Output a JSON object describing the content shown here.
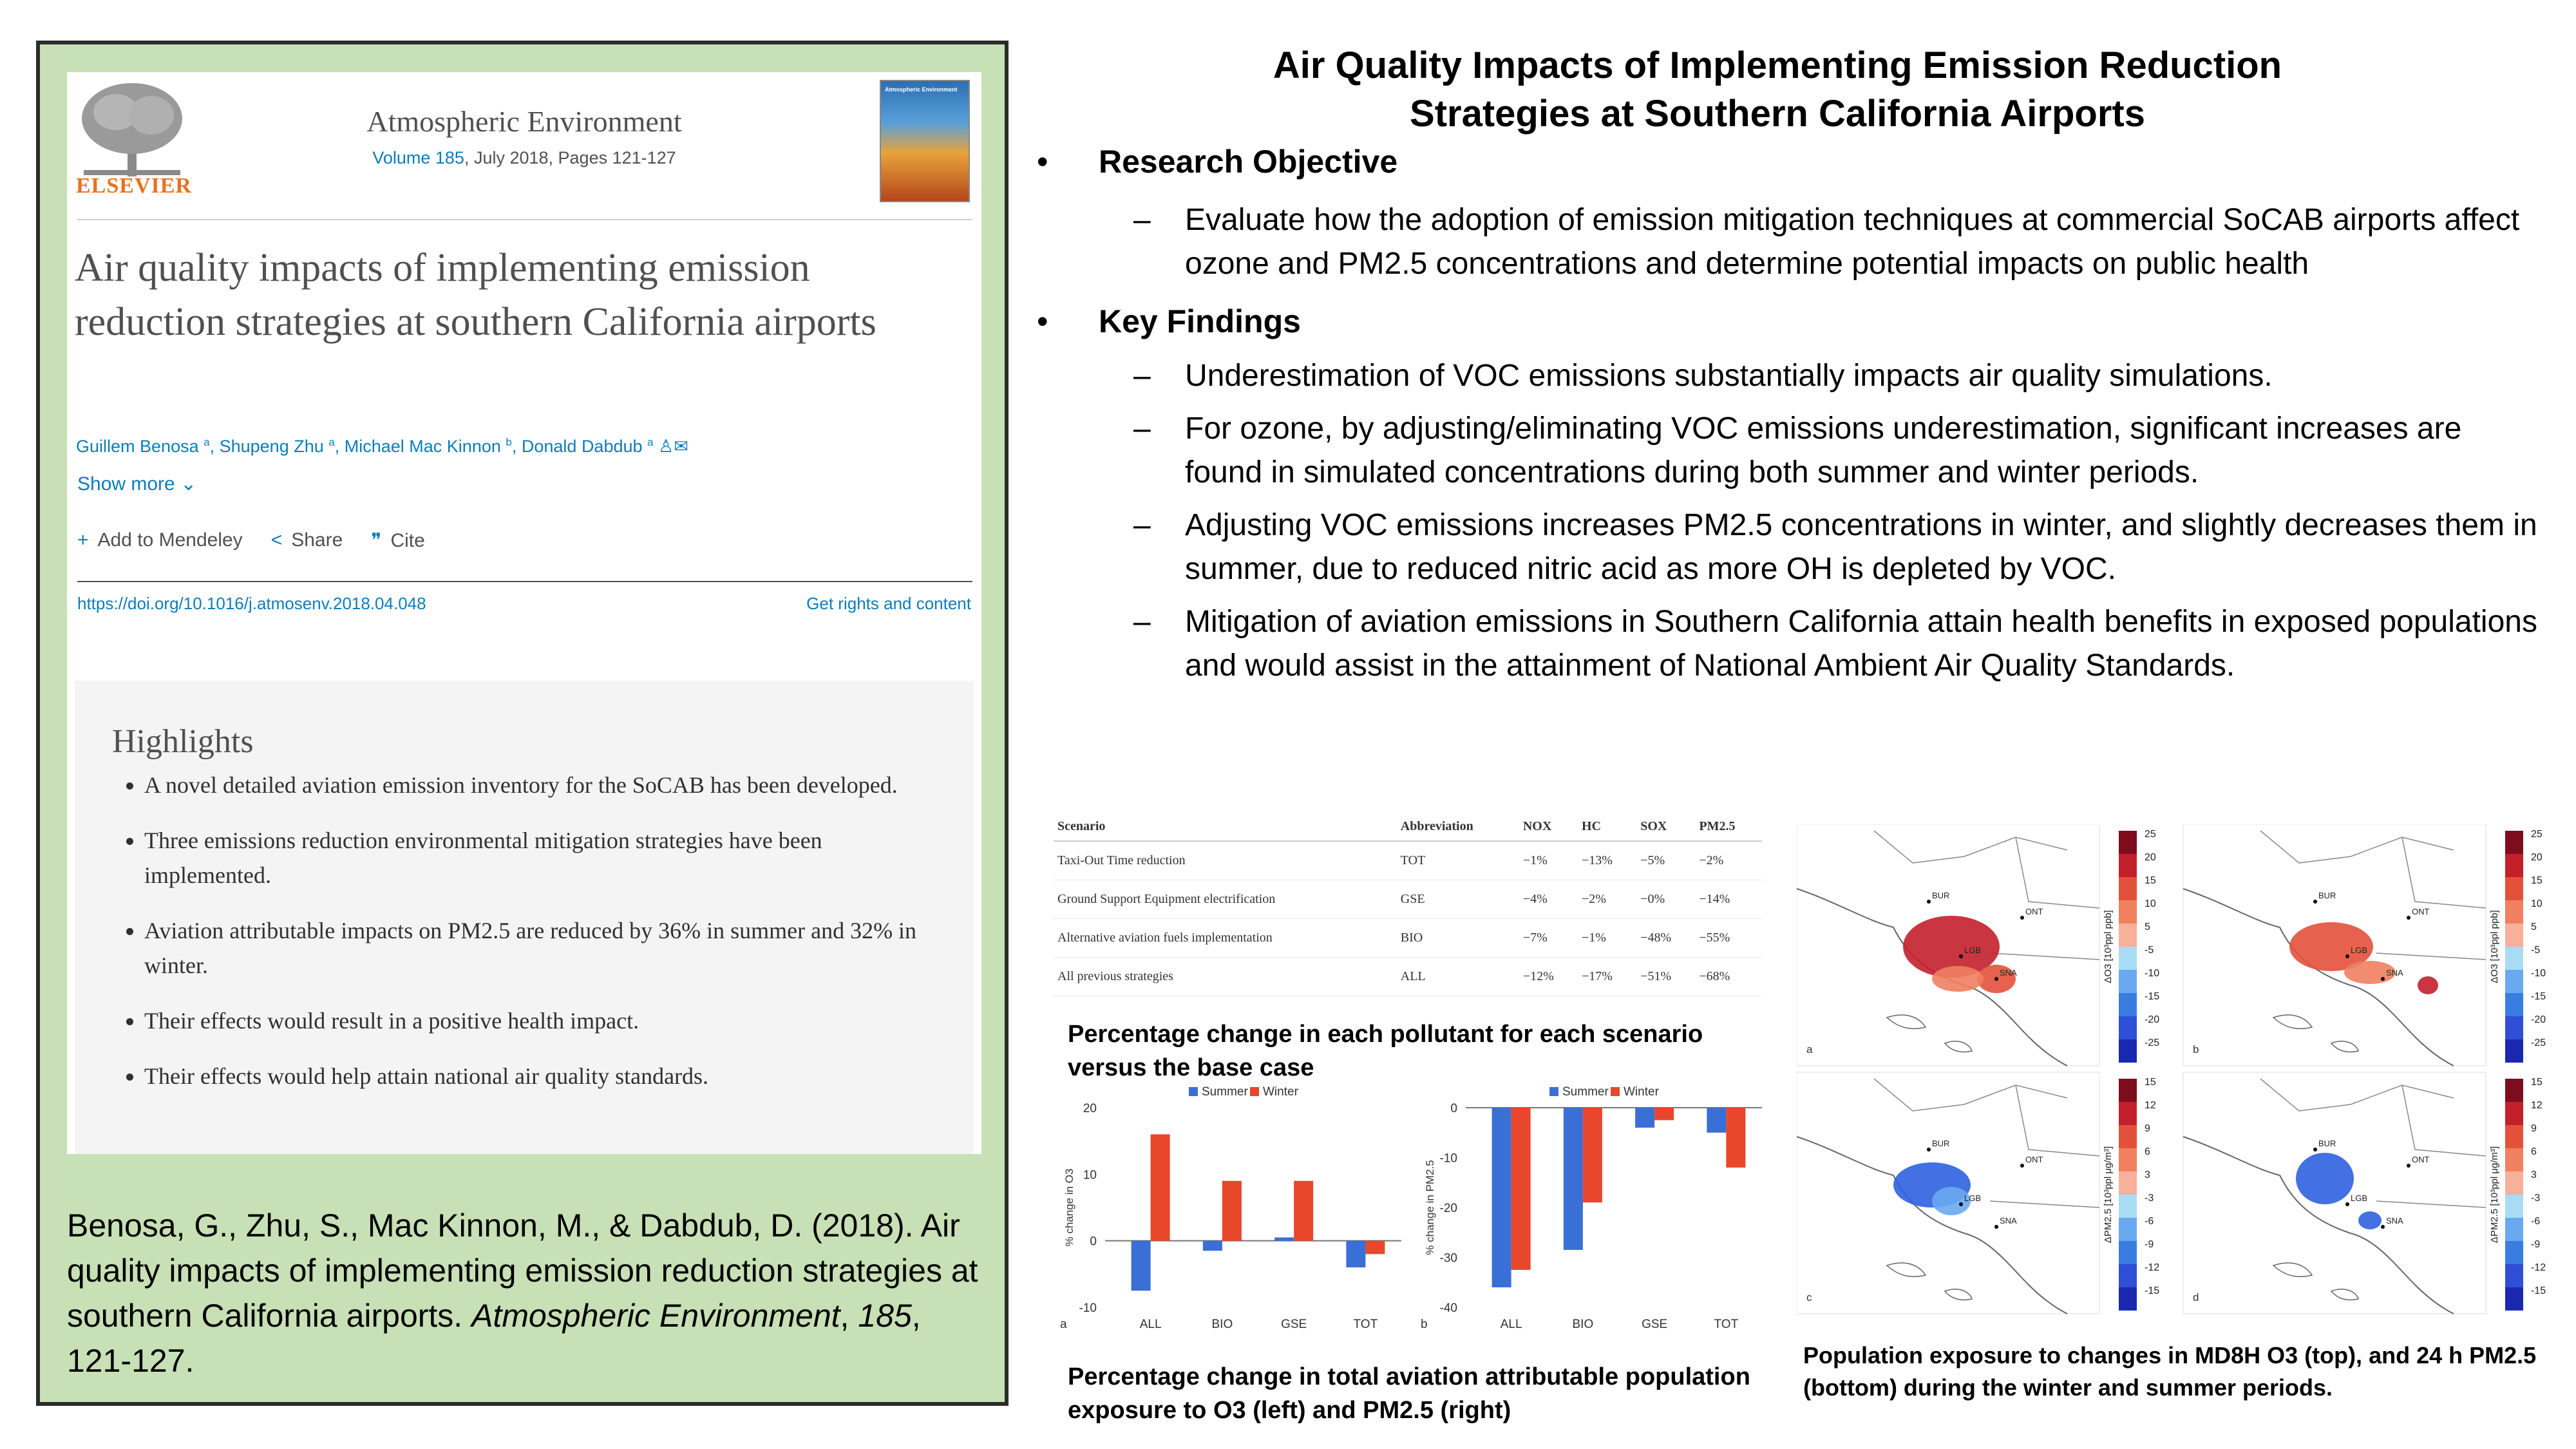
{
  "article": {
    "journal": "Atmospheric Environment",
    "volume_link": "Volume 185",
    "volume_rest": ", July 2018, Pages 121-127",
    "publisher": "ELSEVIER",
    "title": "Air quality impacts of implementing emission reduction strategies at southern California airports",
    "authors": [
      {
        "name": "Guillem Benosa",
        "sup": "a"
      },
      {
        "name": "Shupeng Zhu",
        "sup": "a"
      },
      {
        "name": "Michael Mac Kinnon",
        "sup": "b"
      },
      {
        "name": "Donald Dabdub",
        "sup": "a"
      }
    ],
    "show_more": "Show more",
    "actions": {
      "mendeley": "Add to Mendeley",
      "share": "Share",
      "cite": "Cite"
    },
    "doi": "https://doi.org/10.1016/j.atmosenv.2018.04.048",
    "rights": "Get rights and content",
    "highlights_title": "Highlights",
    "highlights": [
      "A novel detailed aviation emission inventory for the SoCAB has been developed.",
      "Three emissions reduction environmental mitigation strategies have been implemented.",
      "Aviation attributable impacts on PM2.5 are reduced by 36% in summer and 32% in winter.",
      "Their effects would result in a positive health impact.",
      "Their effects would help attain national air quality standards."
    ]
  },
  "citation": {
    "pre": "Benosa, G., Zhu, S., Mac Kinnon, M., & Dabdub, D. (2018). Air quality impacts of implementing emission reduction strategies at southern California airports. ",
    "journal": "Atmospheric Environment",
    "mid": ", ",
    "volume": "185",
    "post": ", 121-127."
  },
  "poster": {
    "title_line1": "Air Quality Impacts of Implementing Emission Reduction",
    "title_line2": "Strategies at Southern California Airports",
    "objective_head": "Research Objective",
    "objective": "Evaluate how the adoption of emission mitigation techniques at commercial SoCAB airports affect ozone and PM2.5 concentrations and determine potential impacts on public health",
    "findings_head": "Key Findings",
    "findings": [
      "Underestimation of VOC emissions substantially impacts air quality simulations.",
      "For ozone, by adjusting/eliminating VOC emissions underestimation, significant increases are found in simulated concentrations during both summer and winter periods.",
      "Adjusting VOC emissions increases PM2.5 concentrations in winter, and slightly decreases them in  summer, due to reduced nitric acid as more OH is depleted by VOC.",
      "Mitigation of aviation emissions in Southern California attain health benefits in exposed populations and would assist in the attainment of National Ambient Air Quality Standards."
    ],
    "bullet": "•",
    "dash": "–"
  },
  "table": {
    "headers": [
      "Scenario",
      "Abbreviation",
      "NOX",
      "HC",
      "SOX",
      "PM2.5"
    ],
    "rows": [
      [
        "Taxi-Out Time reduction",
        "TOT",
        "−1%",
        "−13%",
        "−5%",
        "−2%"
      ],
      [
        "Ground Support Equipment electrification",
        "GSE",
        "−4%",
        "−2%",
        "−0%",
        "−14%"
      ],
      [
        "Alternative aviation fuels implementation",
        "BIO",
        "−7%",
        "−1%",
        "−48%",
        "−55%"
      ],
      [
        "All previous strategies",
        "ALL",
        "−12%",
        "−17%",
        "−51%",
        "−68%"
      ]
    ]
  },
  "captions": {
    "table": "Percentage change in each pollutant for each scenario versus the base case",
    "bars": "Percentage change in total aviation attributable population exposure to O3 (left) and PM2.5 (right)",
    "maps": "Population exposure to changes in MD8H O3 (top), and 24 h PM2.5 (bottom) during the winter and summer periods."
  },
  "chart_data": [
    {
      "type": "bar",
      "panel": "a",
      "categories": [
        "ALL",
        "BIO",
        "GSE",
        "TOT"
      ],
      "series": [
        {
          "name": "Summer",
          "values": [
            -7.5,
            -1.5,
            0.5,
            -4
          ]
        },
        {
          "name": "Winter",
          "values": [
            16,
            9,
            9,
            -2
          ]
        }
      ],
      "ylabel": "% change in O3",
      "ylim": [
        -10,
        20
      ],
      "yticks": [
        -10,
        0,
        10,
        20
      ],
      "colors": {
        "Summer": "#3a6fd6",
        "Winter": "#e8472c"
      },
      "legend": "top"
    },
    {
      "type": "bar",
      "panel": "b",
      "categories": [
        "ALL",
        "BIO",
        "GSE",
        "TOT"
      ],
      "series": [
        {
          "name": "Summer",
          "values": [
            -36,
            -28.5,
            -4,
            -5
          ]
        },
        {
          "name": "Winter",
          "values": [
            -32.5,
            -19,
            -2.5,
            -12
          ]
        }
      ],
      "ylabel": "% change in PM2.5",
      "ylim": [
        -40,
        0
      ],
      "yticks": [
        0,
        -10,
        -20,
        -30,
        -40
      ],
      "colors": {
        "Summer": "#3a6fd6",
        "Winter": "#e8472c"
      },
      "legend": "top"
    }
  ],
  "maps": {
    "panels": [
      "a",
      "b",
      "c",
      "d"
    ],
    "airports": [
      "BUR",
      "ONT",
      "LGB",
      "SNA"
    ],
    "o3_ticks": [
      "25",
      "20",
      "15",
      "10",
      "5",
      "-5",
      "-10",
      "-15",
      "-20",
      "-25"
    ],
    "pm_ticks": [
      "15",
      "12",
      "9",
      "6",
      "3",
      "-3",
      "-6",
      "-9",
      "-12",
      "-15"
    ],
    "o3_label": "ΔO3 [10³ppl ppb]",
    "pm_label": "ΔPM2.5 [10³ppl μg/m³]"
  }
}
